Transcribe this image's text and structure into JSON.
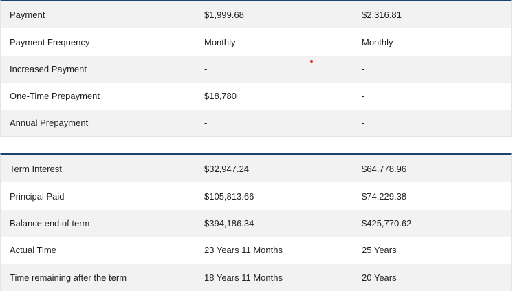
{
  "payment_table": {
    "rows": [
      {
        "label": "Payment",
        "a": "$1,999.68",
        "b": "$2,316.81"
      },
      {
        "label": "Payment Frequency",
        "a": "Monthly",
        "b": "Monthly"
      },
      {
        "label": "Increased Payment",
        "a": "-",
        "b": "-"
      },
      {
        "label": "One-Time Prepayment",
        "a": "$18,780",
        "b": "-"
      },
      {
        "label": "Annual Prepayment",
        "a": "-",
        "b": "-"
      }
    ]
  },
  "term_table": {
    "rows": [
      {
        "label": "Term Interest",
        "a": "$32,947.24",
        "b": "$64,778.96"
      },
      {
        "label": "Principal Paid",
        "a": "$105,813.66",
        "b": "$74,229.38"
      },
      {
        "label": "Balance end of term",
        "a": "$394,186.34",
        "b": "$425,770.62"
      },
      {
        "label": "Actual Time",
        "a": "23 Years 11 Months",
        "b": "25 Years"
      },
      {
        "label": "Time remaining after the term",
        "a": "18 Years 11 Months",
        "b": "20 Years"
      }
    ]
  },
  "colors": {
    "header_rule": "#1c4475",
    "row_alt_bg": "#f2f2f2",
    "marker_dot": "#e0302f"
  }
}
